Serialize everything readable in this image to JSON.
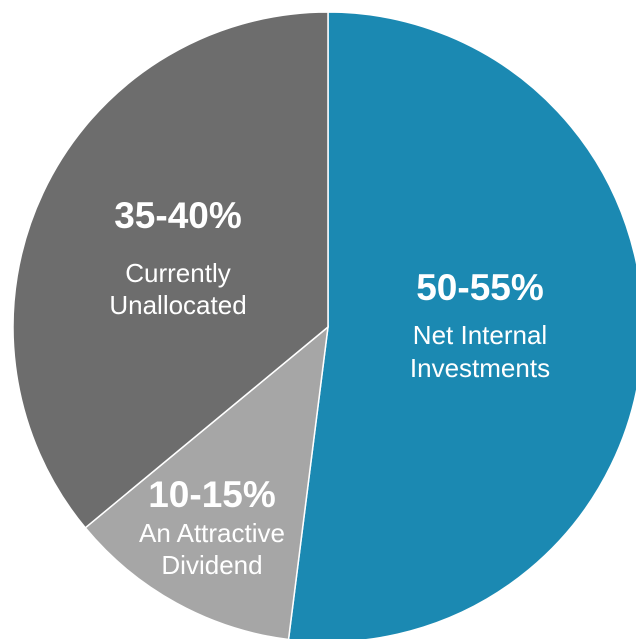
{
  "chart_data": {
    "type": "pie",
    "categories": [
      [
        "Net Internal",
        "Investments"
      ],
      [
        "An Attractive",
        "Dividend"
      ],
      [
        "Currently",
        "Unallocated"
      ]
    ],
    "values": [
      52,
      12,
      36
    ],
    "value_labels": [
      "50-55%",
      "10-15%",
      "35-40%"
    ],
    "colors": [
      "#1b89b2",
      "#a6a6a6",
      "#6d6d6d"
    ]
  }
}
